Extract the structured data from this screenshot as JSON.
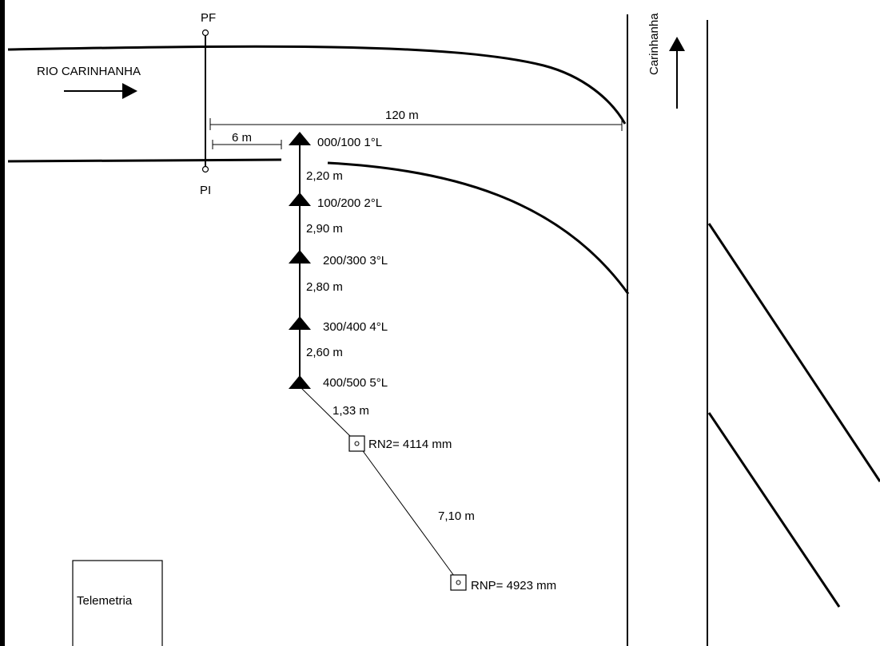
{
  "river_label": "RIO CARINHANHA",
  "road_label": "Carinhanha",
  "pf_label": "PF",
  "pi_label": "PI",
  "dimension_120": "120 m",
  "dimension_6": "6 m",
  "staffs": [
    {
      "label": "000/100 1°L"
    },
    {
      "label": "100/200 2°L"
    },
    {
      "label": "200/300 3°L"
    },
    {
      "label": "300/400 4°L"
    },
    {
      "label": "400/500 5°L"
    }
  ],
  "spacings": [
    "2,20 m",
    "2,90 m",
    "2,80 m",
    "2,60 m"
  ],
  "rn_spacing_1": "1,33 m",
  "rn_spacing_2": "7,10 m",
  "rn2_label": "RN2= 4114 mm",
  "rnp_label": "RNP= 4923 mm",
  "telemetry_label": "Telemetria"
}
